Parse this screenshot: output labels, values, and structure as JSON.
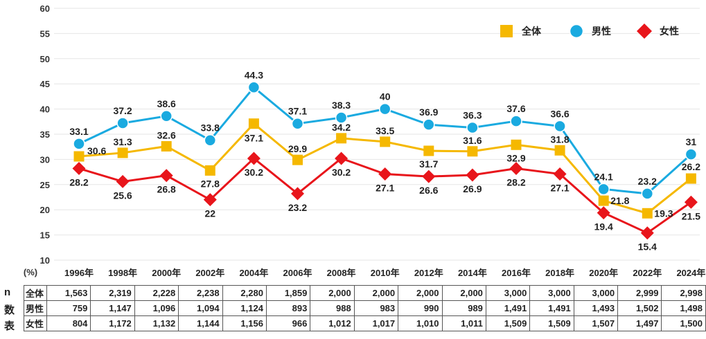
{
  "chart_data": {
    "type": "line",
    "categories": [
      "1996年",
      "1998年",
      "2000年",
      "2002年",
      "2004年",
      "2006年",
      "2008年",
      "2010年",
      "2012年",
      "2014年",
      "2016年",
      "2018年",
      "2020年",
      "2022年",
      "2024年"
    ],
    "ylim": [
      10,
      60
    ],
    "yticks": [
      10,
      15,
      20,
      25,
      30,
      35,
      40,
      45,
      50,
      55,
      60
    ],
    "ylabel": "(%)",
    "legend_position": "top-right",
    "series": [
      {
        "name": "全体",
        "color": "#F5B800",
        "marker": "square",
        "values": [
          30.6,
          31.3,
          32.6,
          27.8,
          37.1,
          29.9,
          34.2,
          33.5,
          31.7,
          31.6,
          32.9,
          31.8,
          21.8,
          19.3,
          26.2
        ]
      },
      {
        "name": "男性",
        "color": "#1AAAE0",
        "marker": "circle",
        "values": [
          33.1,
          37.2,
          38.6,
          33.8,
          44.3,
          37.1,
          38.3,
          40.0,
          36.9,
          36.3,
          37.6,
          36.6,
          24.1,
          23.2,
          31.0
        ]
      },
      {
        "name": "女性",
        "color": "#E8151B",
        "marker": "diamond",
        "values": [
          28.2,
          25.6,
          26.8,
          22.0,
          30.2,
          23.2,
          30.2,
          27.1,
          26.6,
          26.9,
          28.2,
          27.1,
          19.4,
          15.4,
          21.5
        ]
      }
    ]
  },
  "table": {
    "side_label": [
      "n",
      "数",
      "表"
    ],
    "rows": [
      {
        "label": "全体",
        "values": [
          "1,563",
          "2,319",
          "2,228",
          "2,238",
          "2,280",
          "1,859",
          "2,000",
          "2,000",
          "2,000",
          "2,000",
          "3,000",
          "3,000",
          "3,000",
          "2,999",
          "2,998"
        ]
      },
      {
        "label": "男性",
        "values": [
          "759",
          "1,147",
          "1,096",
          "1,094",
          "1,124",
          "893",
          "988",
          "983",
          "990",
          "989",
          "1,491",
          "1,491",
          "1,493",
          "1,502",
          "1,498"
        ]
      },
      {
        "label": "女性",
        "values": [
          "804",
          "1,172",
          "1,132",
          "1,144",
          "1,156",
          "966",
          "1,012",
          "1,017",
          "1,010",
          "1,011",
          "1,509",
          "1,509",
          "1,507",
          "1,497",
          "1,500"
        ]
      }
    ]
  }
}
